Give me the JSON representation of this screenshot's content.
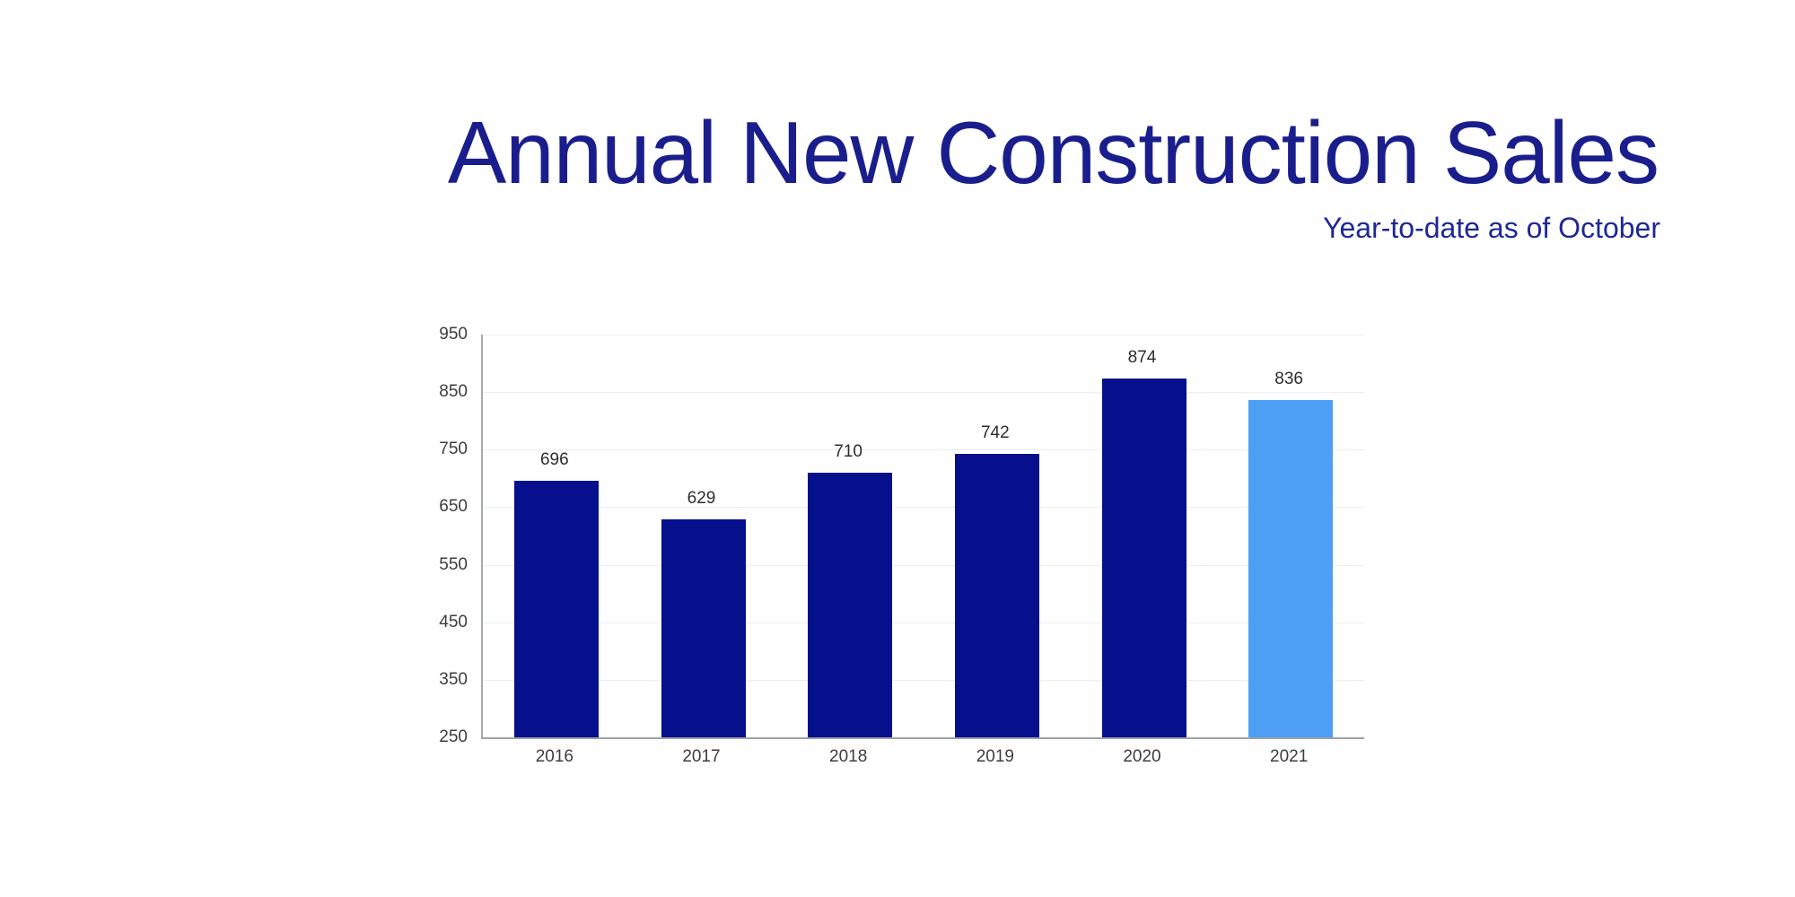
{
  "header": {
    "title": "Annual New Construction Sales",
    "subtitle": "Year-to-date as of October",
    "title_color": "#1a1e8c",
    "subtitle_color": "#1e2896"
  },
  "chart_data": {
    "type": "bar",
    "title": "Annual New Construction Sales",
    "subtitle": "Year-to-date as of October",
    "categories": [
      "2016",
      "2017",
      "2018",
      "2019",
      "2020",
      "2021"
    ],
    "values": [
      696,
      629,
      710,
      742,
      874,
      836
    ],
    "value_labels": true,
    "xlabel": "",
    "ylabel": "",
    "ylim": [
      250,
      950
    ],
    "yticks": [
      250,
      350,
      450,
      550,
      650,
      750,
      850,
      950
    ],
    "grid": true,
    "legend": false,
    "bar_color": "#060f8c",
    "highlight_index": 5,
    "highlight_color": "#4d9ff5",
    "gridline_color": "#e8eef4",
    "axis_color": "#a6abaf",
    "tick_label_color": "#3d3d3d",
    "value_label_color": "#2d2d2d"
  }
}
